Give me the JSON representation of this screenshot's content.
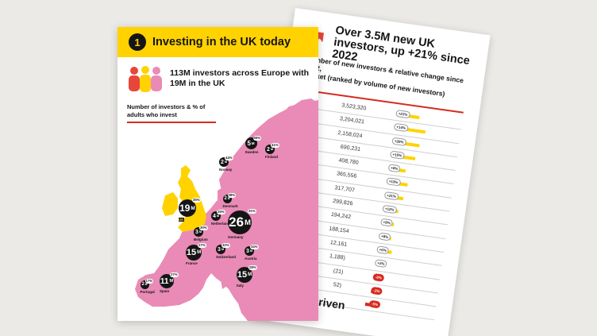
{
  "colors": {
    "background": "#eceae7",
    "brand_yellow": "#ffd200",
    "map_pink": "#e98bb6",
    "accent_red": "#d62b1e",
    "bubble_black": "#151515"
  },
  "back_page": {
    "arrow_icon": "arrow-up-right-icon",
    "title": "Over 3.5M new UK investors, up +21% since 2022",
    "subtitle_lines": [
      "Number of new investors & relative change since 2022,",
      "market (ranked by volume of new investors)"
    ],
    "rows": [
      {
        "country": "ny",
        "value": "3,523,320",
        "change": "+21%",
        "bar": 0.3
      },
      {
        "country": "",
        "value": "3,204,021",
        "change": "+14%",
        "bar": 0.42
      },
      {
        "country": "",
        "value": "2,158,024",
        "change": "+20%",
        "bar": 0.36
      },
      {
        "country": "",
        "value": "690,231",
        "change": "+15%",
        "bar": 0.32
      },
      {
        "country": "",
        "value": "408,780",
        "change": "+6%",
        "bar": 0.2
      },
      {
        "country": "",
        "value": "365,556",
        "change": "+13%",
        "bar": 0.26
      },
      {
        "country": "",
        "value": "317,707",
        "change": "+21%",
        "bar": 0.22
      },
      {
        "country": "",
        "value": "299,826",
        "change": "+12%",
        "bar": 0.18
      },
      {
        "country": "",
        "value": "194,242",
        "change": "+8%",
        "bar": 0.14
      },
      {
        "country": "",
        "value": "188,154",
        "change": "+8%",
        "bar": 0.12
      },
      {
        "country": "",
        "value": "12,161",
        "change": "+6%",
        "bar": 0.16
      },
      {
        "country": "",
        "value": "1,188)",
        "change": "+2%",
        "bar": 0.08
      },
      {
        "country": "",
        "value": "(21)",
        "change": "-5%",
        "bar": -0.06
      },
      {
        "country": "",
        "value": "52)",
        "change": "-2%",
        "bar": -0.08
      },
      {
        "country": "",
        "value": "",
        "change": "-5%",
        "bar": -0.14
      }
    ],
    "footer_line1": "umber of",
    "footer_line2": "as been driven"
  },
  "front_page": {
    "section_number": "1",
    "title": "Investing in the UK today",
    "people_icon": "people-group-icon",
    "lead": "113M investors across Europe with 19M in the UK",
    "legend_label": "Number of investors & % of adults who invest",
    "countries": [
      {
        "name": "UK",
        "value": "19",
        "unit": "M",
        "pct": "35%"
      },
      {
        "name": "Germany",
        "value": "26",
        "unit": "M",
        "pct": "31%"
      },
      {
        "name": "France",
        "value": "15",
        "unit": "M",
        "pct": "27%"
      },
      {
        "name": "Italy",
        "value": "15",
        "unit": "M",
        "pct": "28%"
      },
      {
        "name": "Spain",
        "value": "11",
        "unit": "M",
        "pct": "27%"
      },
      {
        "name": "Sweden",
        "value": "5",
        "unit": "M",
        "pct": "55%"
      },
      {
        "name": "Netherlands",
        "value": "4",
        "unit": "M",
        "pct": "25%"
      },
      {
        "name": "Belgium",
        "value": "3",
        "unit": "M",
        "pct": "30%"
      },
      {
        "name": "Switzerland",
        "value": "3",
        "unit": "M",
        "pct": "32%"
      },
      {
        "name": "Austria",
        "value": "3",
        "unit": "M",
        "pct": "34%"
      },
      {
        "name": "Norway",
        "value": "2",
        "unit": "M",
        "pct": "44%"
      },
      {
        "name": "Denmark",
        "value": "2",
        "unit": "M",
        "pct": "38%"
      },
      {
        "name": "Finland",
        "value": "2",
        "unit": "M",
        "pct": "41%"
      },
      {
        "name": "Portugal",
        "value": "2",
        "unit": "M",
        "pct": "17%"
      }
    ]
  }
}
